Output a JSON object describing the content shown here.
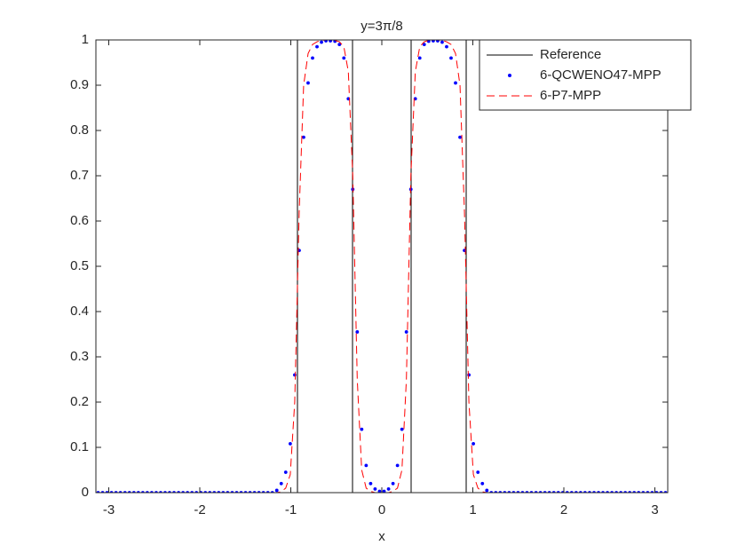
{
  "chart_data": {
    "type": "line",
    "title": "y=3π/8",
    "xlabel": "x",
    "xlim": [
      -3.1416,
      3.1416
    ],
    "xticks": [
      -3,
      -2,
      -1,
      0,
      1,
      2,
      3
    ],
    "ylim": [
      0,
      1
    ],
    "yticks": [
      0,
      0.1,
      0.2,
      0.3,
      0.4,
      0.5,
      0.6,
      0.7,
      0.8,
      0.9,
      1
    ],
    "legend": "northeast",
    "x": [
      -3.117,
      -3.068,
      -3.019,
      -2.97,
      -2.921,
      -2.872,
      -2.822,
      -2.773,
      -2.724,
      -2.675,
      -2.626,
      -2.577,
      -2.528,
      -2.479,
      -2.43,
      -2.381,
      -2.332,
      -2.283,
      -2.233,
      -2.184,
      -2.135,
      -2.086,
      -2.037,
      -1.988,
      -1.939,
      -1.89,
      -1.841,
      -1.792,
      -1.743,
      -1.694,
      -1.644,
      -1.595,
      -1.546,
      -1.497,
      -1.448,
      -1.399,
      -1.35,
      -1.301,
      -1.252,
      -1.203,
      -1.154,
      -1.105,
      -1.056,
      -1.006,
      -0.957,
      -0.908,
      -0.859,
      -0.81,
      -0.761,
      -0.712,
      -0.663,
      -0.614,
      -0.565,
      -0.515,
      -0.466,
      -0.417,
      -0.368,
      -0.319,
      -0.27,
      -0.221,
      -0.172,
      -0.123,
      -0.074,
      -0.025,
      0.025,
      0.074,
      0.123,
      0.172,
      0.221,
      0.27,
      0.319,
      0.368,
      0.417,
      0.466,
      0.515,
      0.565,
      0.614,
      0.663,
      0.712,
      0.761,
      0.81,
      0.859,
      0.908,
      0.957,
      1.006,
      1.056,
      1.105,
      1.154,
      1.203,
      1.252,
      1.301,
      1.35,
      1.399,
      1.448,
      1.497,
      1.546,
      1.595,
      1.644,
      1.694,
      1.743,
      1.792,
      1.841,
      1.89,
      1.939,
      1.988,
      2.037,
      2.086,
      2.135,
      2.184,
      2.233,
      2.283,
      2.332,
      2.381,
      2.43,
      2.479,
      2.528,
      2.577,
      2.626,
      2.675,
      2.724,
      2.773,
      2.822,
      2.872,
      2.921,
      2.97,
      3.019,
      3.068,
      3.117
    ],
    "series": [
      {
        "name": "Reference",
        "color": "#000000",
        "style": "solid",
        "x": [
          -3.1416,
          -0.927,
          -0.927,
          -0.322,
          -0.322,
          0.322,
          0.322,
          0.927,
          0.927,
          3.1416
        ],
        "values": [
          0,
          0,
          1,
          1,
          0,
          0,
          1,
          1,
          0,
          0
        ]
      },
      {
        "name": "6-QCWENO47-MPP",
        "color": "#0000ff",
        "style": "markers",
        "values": [
          0,
          0,
          0,
          0,
          0,
          0,
          0,
          0,
          0,
          0,
          0,
          0,
          0,
          0,
          0,
          0,
          0,
          0,
          0,
          0,
          0,
          0,
          0,
          0,
          0,
          0,
          0,
          0,
          0,
          0,
          0,
          0,
          0,
          0,
          0,
          0,
          0,
          0,
          0,
          0,
          0.005,
          0.02,
          0.045,
          0.108,
          0.26,
          0.535,
          0.785,
          0.905,
          0.96,
          0.985,
          0.995,
          0.998,
          0.998,
          0.997,
          0.99,
          0.96,
          0.87,
          0.67,
          0.355,
          0.14,
          0.06,
          0.02,
          0.008,
          0.003,
          0.003,
          0.008,
          0.02,
          0.06,
          0.14,
          0.355,
          0.67,
          0.87,
          0.96,
          0.99,
          0.997,
          0.998,
          0.998,
          0.995,
          0.985,
          0.96,
          0.905,
          0.785,
          0.535,
          0.26,
          0.108,
          0.045,
          0.02,
          0.005,
          0,
          0,
          0,
          0,
          0,
          0,
          0,
          0,
          0,
          0,
          0,
          0,
          0,
          0,
          0,
          0,
          0,
          0,
          0,
          0,
          0,
          0,
          0,
          0,
          0,
          0,
          0,
          0,
          0,
          0,
          0,
          0,
          0,
          0,
          0,
          0,
          0,
          0,
          0,
          0
        ]
      },
      {
        "name": "6-P7-MPP",
        "color": "#ff0000",
        "style": "dashed",
        "values": [
          0,
          0,
          0,
          0,
          0,
          0,
          0,
          0,
          0,
          0,
          0,
          0,
          0,
          0,
          0,
          0,
          0,
          0,
          0,
          0,
          0,
          0,
          0,
          0,
          0,
          0,
          0,
          0,
          0,
          0,
          0,
          0,
          0,
          0,
          0,
          0,
          0,
          0,
          0,
          0,
          0,
          0.002,
          0.01,
          0.04,
          0.2,
          0.62,
          0.9,
          0.97,
          0.99,
          0.996,
          0.999,
          1,
          1,
          0.999,
          0.996,
          0.985,
          0.93,
          0.7,
          0.25,
          0.05,
          0.01,
          0.003,
          0,
          0,
          0,
          0,
          0.003,
          0.01,
          0.05,
          0.25,
          0.7,
          0.93,
          0.985,
          0.996,
          0.999,
          1,
          1,
          0.999,
          0.996,
          0.99,
          0.97,
          0.9,
          0.62,
          0.2,
          0.04,
          0.01,
          0.002,
          0,
          0,
          0,
          0,
          0,
          0,
          0,
          0,
          0,
          0,
          0,
          0,
          0,
          0,
          0,
          0,
          0,
          0,
          0,
          0,
          0,
          0,
          0,
          0,
          0,
          0,
          0,
          0,
          0,
          0,
          0,
          0,
          0,
          0,
          0,
          0,
          0,
          0,
          0,
          0,
          0
        ]
      }
    ]
  }
}
